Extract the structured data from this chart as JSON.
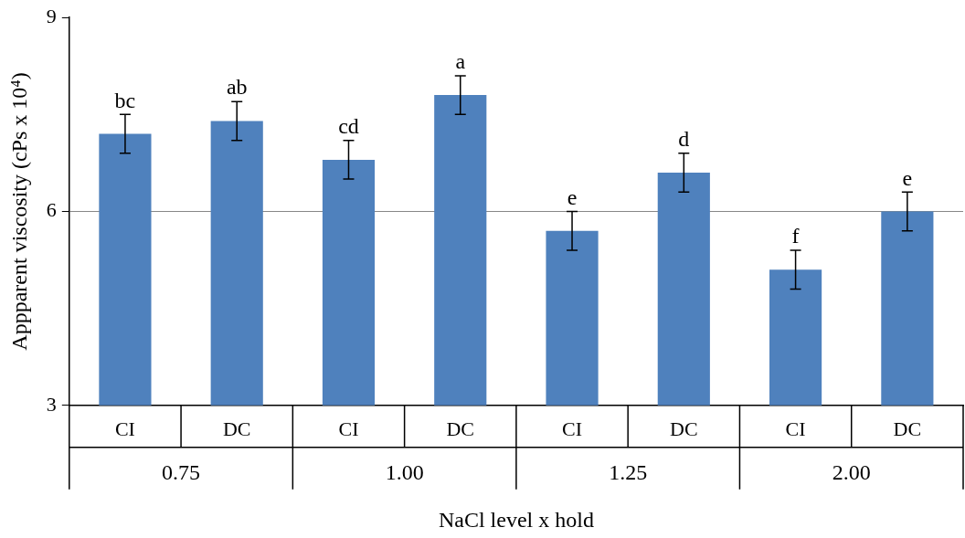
{
  "chart_data": {
    "type": "bar",
    "categories": [
      "CI",
      "DC",
      "CI",
      "DC",
      "CI",
      "DC",
      "CI",
      "DC"
    ],
    "values": [
      7.2,
      7.4,
      6.8,
      7.8,
      5.7,
      6.6,
      5.1,
      6.0
    ],
    "errors": [
      0.3,
      0.3,
      0.3,
      0.3,
      0.3,
      0.3,
      0.3,
      0.3
    ],
    "value_labels": [
      "bc",
      "ab",
      "cd",
      "a",
      "e",
      "d",
      "f",
      "e"
    ],
    "color": "#4f81bd",
    "ylabel": "Appparent viscosity (cPs x 10⁴)",
    "xlabel": "NaCl level x hold",
    "annotations": [
      "0.75",
      "1.00",
      "1.25",
      "2.00"
    ],
    "ylim": [
      3,
      9
    ],
    "yticks": [
      3,
      6,
      9
    ],
    "grid": "y"
  }
}
